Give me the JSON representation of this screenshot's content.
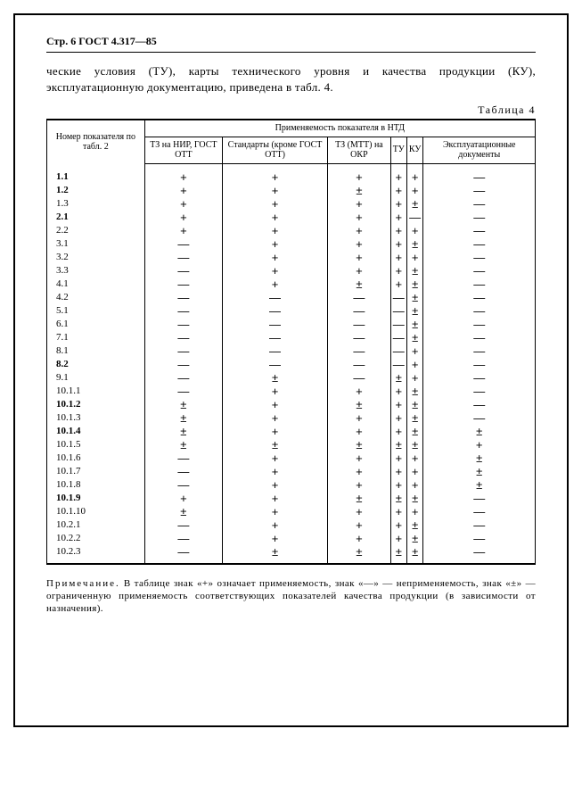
{
  "meta": {
    "page_label": "Стр. 6 ГОСТ 4.317—85",
    "intro": "ческие условия (ТУ), карты технического уровня и качества продукции (КУ), эксплуатационную документацию, приведена в табл. 4.",
    "table_caption": "Таблица 4",
    "footnote_label": "Примечание.",
    "footnote": " В таблице знак «+» означает применяемость, знак «—» — неприменяемость, знак «±» — ограниченную применяемость соответствующих показателей качества продукции (в зависимости от назначения)."
  },
  "table": {
    "header": {
      "col0": "Номер показателя по табл. 2",
      "group": "Применяемость показателя в НТД",
      "cols": [
        "ТЗ на НИР, ГОСТ ОТТ",
        "Стандарты (кроме ГОСТ ОТТ)",
        "ТЗ (МТТ) на ОКР",
        "ТУ",
        "КУ",
        "Эксплуатационные документы"
      ]
    },
    "symbols": {
      "plus": "+",
      "minus": "—",
      "pm": "±"
    },
    "rows": [
      {
        "n": "1.1",
        "v": [
          "+",
          "+",
          "+",
          "+",
          "+",
          "—"
        ],
        "b": true
      },
      {
        "n": "1.2",
        "v": [
          "+",
          "+",
          "±",
          "+",
          "+",
          "—"
        ],
        "b": true
      },
      {
        "n": "1.3",
        "v": [
          "+",
          "+",
          "+",
          "+",
          "±",
          "—"
        ],
        "b": false
      },
      {
        "n": "2.1",
        "v": [
          "+",
          "+",
          "+",
          "+",
          "—",
          "—"
        ],
        "b": true
      },
      {
        "n": "2.2",
        "v": [
          "+",
          "+",
          "+",
          "+",
          "+",
          "—"
        ],
        "b": false
      },
      {
        "n": "3.1",
        "v": [
          "—",
          "+",
          "+",
          "+",
          "±",
          "—"
        ],
        "b": false
      },
      {
        "n": "3.2",
        "v": [
          "—",
          "+",
          "+",
          "+",
          "+",
          "—"
        ],
        "b": false
      },
      {
        "n": "3.3",
        "v": [
          "—",
          "+",
          "+",
          "+",
          "±",
          "—"
        ],
        "b": false
      },
      {
        "n": "4.1",
        "v": [
          "—",
          "+",
          "±",
          "+",
          "±",
          "—"
        ],
        "b": false
      },
      {
        "n": "4.2",
        "v": [
          "—",
          "—",
          "—",
          "—",
          "±",
          "—"
        ],
        "b": false
      },
      {
        "n": "5.1",
        "v": [
          "—",
          "—",
          "—",
          "—",
          "±",
          "—"
        ],
        "b": false
      },
      {
        "n": "6.1",
        "v": [
          "—",
          "—",
          "—",
          "—",
          "±",
          "—"
        ],
        "b": false
      },
      {
        "n": "7.1",
        "v": [
          "—",
          "—",
          "—",
          "—",
          "±",
          "—"
        ],
        "b": false
      },
      {
        "n": "8.1",
        "v": [
          "—",
          "—",
          "—",
          "—",
          "+",
          "—"
        ],
        "b": false
      },
      {
        "n": "8.2",
        "v": [
          "—",
          "—",
          "—",
          "—",
          "+",
          "—"
        ],
        "b": true
      },
      {
        "n": "9.1",
        "v": [
          "—",
          "±",
          "—",
          "±",
          "+",
          "—"
        ],
        "b": false
      },
      {
        "n": "10.1.1",
        "v": [
          "—",
          "+",
          "+",
          "+",
          "±",
          "—"
        ],
        "b": false
      },
      {
        "n": "10.1.2",
        "v": [
          "±",
          "+",
          "±",
          "+",
          "±",
          "—"
        ],
        "b": true
      },
      {
        "n": "10.1.3",
        "v": [
          "±",
          "+",
          "+",
          "+",
          "±",
          "—"
        ],
        "b": false
      },
      {
        "n": "10.1.4",
        "v": [
          "±",
          "+",
          "+",
          "+",
          "±",
          "±"
        ],
        "b": true
      },
      {
        "n": "10.1.5",
        "v": [
          "±",
          "±",
          "±",
          "±",
          "±",
          "+"
        ],
        "b": false
      },
      {
        "n": "10.1.6",
        "v": [
          "—",
          "+",
          "+",
          "+",
          "+",
          "±"
        ],
        "b": false
      },
      {
        "n": "10.1.7",
        "v": [
          "—",
          "+",
          "+",
          "+",
          "+",
          "±"
        ],
        "b": false
      },
      {
        "n": "10.1.8",
        "v": [
          "—",
          "+",
          "+",
          "+",
          "+",
          "±"
        ],
        "b": false
      },
      {
        "n": "10.1.9",
        "v": [
          "+",
          "+",
          "±",
          "±",
          "±",
          "—"
        ],
        "b": true
      },
      {
        "n": "10.1.10",
        "v": [
          "±",
          "+",
          "+",
          "+",
          "+",
          "—"
        ],
        "b": false
      },
      {
        "n": "10.2.1",
        "v": [
          "—",
          "+",
          "+",
          "+",
          "±",
          "—"
        ],
        "b": false
      },
      {
        "n": "10.2.2",
        "v": [
          "—",
          "+",
          "+",
          "+",
          "±",
          "—"
        ],
        "b": false
      },
      {
        "n": "10.2.3",
        "v": [
          "—",
          "±",
          "±",
          "±",
          "±",
          "—"
        ],
        "b": false
      }
    ]
  }
}
